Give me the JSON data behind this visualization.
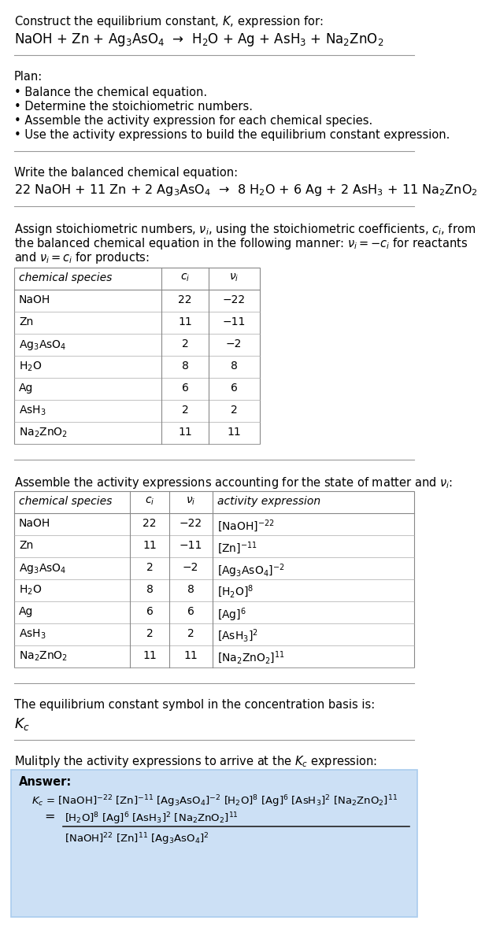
{
  "title_line1": "Construct the equilibrium constant, $K$, expression for:",
  "reaction_unbalanced": "NaOH + Zn + Ag$_3$AsO$_4$  →  H$_2$O + Ag + AsH$_3$ + Na$_2$ZnO$_2$",
  "plan_header": "Plan:",
  "plan_items": [
    "• Balance the chemical equation.",
    "• Determine the stoichiometric numbers.",
    "• Assemble the activity expression for each chemical species.",
    "• Use the activity expressions to build the equilibrium constant expression."
  ],
  "balanced_header": "Write the balanced chemical equation:",
  "balanced_eq": "22 NaOH + 11 Zn + 2 Ag$_3$AsO$_4$  →  8 H$_2$O + 6 Ag + 2 AsH$_3$ + 11 Na$_2$ZnO$_2$",
  "stoich_header_lines": [
    "Assign stoichiometric numbers, $\\nu_i$, using the stoichiometric coefficients, $c_i$, from",
    "the balanced chemical equation in the following manner: $\\nu_i = -c_i$ for reactants",
    "and $\\nu_i = c_i$ for products:"
  ],
  "table1_headers": [
    "chemical species",
    "$c_i$",
    "$\\nu_i$"
  ],
  "table1_rows": [
    [
      "NaOH",
      "22",
      "−22"
    ],
    [
      "Zn",
      "11",
      "−11"
    ],
    [
      "Ag$_3$AsO$_4$",
      "2",
      "−2"
    ],
    [
      "H$_2$O",
      "8",
      "8"
    ],
    [
      "Ag",
      "6",
      "6"
    ],
    [
      "AsH$_3$",
      "2",
      "2"
    ],
    [
      "Na$_2$ZnO$_2$",
      "11",
      "11"
    ]
  ],
  "activity_header": "Assemble the activity expressions accounting for the state of matter and $\\nu_i$:",
  "table2_headers": [
    "chemical species",
    "$c_i$",
    "$\\nu_i$",
    "activity expression"
  ],
  "table2_rows": [
    [
      "NaOH",
      "22",
      "−22",
      "[NaOH]$^{-22}$"
    ],
    [
      "Zn",
      "11",
      "−11",
      "[Zn]$^{-11}$"
    ],
    [
      "Ag$_3$AsO$_4$",
      "2",
      "−2",
      "[Ag$_3$AsO$_4$]$^{-2}$"
    ],
    [
      "H$_2$O",
      "8",
      "8",
      "[H$_2$O]$^8$"
    ],
    [
      "Ag",
      "6",
      "6",
      "[Ag]$^6$"
    ],
    [
      "AsH$_3$",
      "2",
      "2",
      "[AsH$_3$]$^2$"
    ],
    [
      "Na$_2$ZnO$_2$",
      "11",
      "11",
      "[Na$_2$ZnO$_2$]$^{11}$"
    ]
  ],
  "kc_text": "The equilibrium constant symbol in the concentration basis is:",
  "kc_symbol": "$K_c$",
  "multiply_text": "Mulitply the activity expressions to arrive at the $K_c$ expression:",
  "answer_label": "Answer:",
  "answer_line1": "$K_c$ = [NaOH]$^{-22}$ [Zn]$^{-11}$ [Ag$_3$AsO$_4$]$^{-2}$ [H$_2$O]$^8$ [Ag]$^6$ [AsH$_3$]$^2$ [Na$_2$ZnO$_2$]$^{11}$",
  "answer_eq": "=",
  "answer_line2_num": "[H$_2$O]$^8$ [Ag]$^6$ [AsH$_3$]$^2$ [Na$_2$ZnO$_2$]$^{11}$",
  "answer_line3_den": "[NaOH]$^{22}$ [Zn]$^{11}$ [Ag$_3$AsO$_4$]$^2$",
  "bg_color": "#ffffff",
  "answer_bg_color": "#cce0f5",
  "text_color": "#000000",
  "font_size": 10.5,
  "table_font": 10.0,
  "answer_font": 9.5
}
